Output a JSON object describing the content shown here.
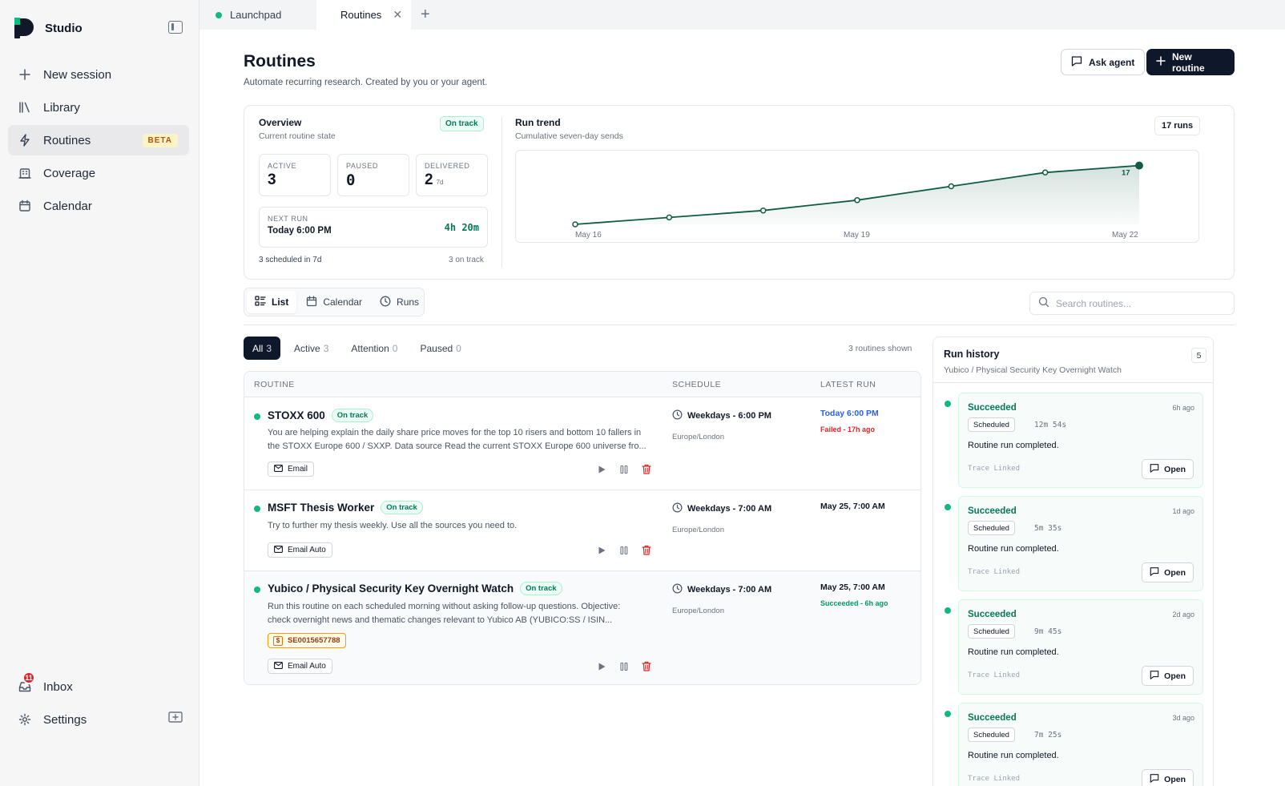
{
  "sidebar": {
    "brand": "Studio",
    "items": [
      {
        "label": "New session",
        "icon": "plus-icon"
      },
      {
        "label": "Library",
        "icon": "library-icon"
      },
      {
        "label": "Routines",
        "icon": "lightning-icon",
        "badge": "BETA",
        "active": true
      },
      {
        "label": "Coverage",
        "icon": "building-icon"
      },
      {
        "label": "Calendar",
        "icon": "calendar-icon"
      }
    ],
    "bottom": [
      {
        "label": "Inbox",
        "icon": "inbox-icon",
        "badge": "11"
      },
      {
        "label": "Settings",
        "icon": "gear-icon"
      }
    ]
  },
  "tabs": [
    {
      "label": "Launchpad",
      "dot_color": "#10b981"
    },
    {
      "label": "Routines",
      "dot_color": "#2563eb",
      "active": true
    }
  ],
  "header": {
    "title": "Routines",
    "subtitle": "Automate recurring research. Created by you or your agent.",
    "ask_agent": "Ask agent",
    "new_routine": "New routine"
  },
  "overview": {
    "title": "Overview",
    "subtitle": "Current routine state",
    "status": "On track",
    "stats": [
      {
        "label": "ACTIVE",
        "value": "3",
        "unit": ""
      },
      {
        "label": "PAUSED",
        "value": "0",
        "unit": ""
      },
      {
        "label": "DELIVERED",
        "value": "2",
        "unit": "7d"
      }
    ],
    "next_run_label": "NEXT RUN",
    "next_run_time": "Today 6:00 PM",
    "next_run_countdown": "4h 20m",
    "footer_left": "3 scheduled in 7d",
    "footer_right": "3 on track"
  },
  "trend": {
    "title": "Run trend",
    "subtitle": "Cumulative seven-day sends",
    "runs_badge": "17 runs"
  },
  "chart_data": {
    "type": "area",
    "x": [
      "May 16",
      "May 17",
      "May 18",
      "May 19",
      "May 20",
      "May 21",
      "May 22"
    ],
    "tick_labels": [
      "May 16",
      "May 19",
      "May 22"
    ],
    "values": [
      0,
      2,
      4,
      7,
      11,
      15,
      17
    ],
    "end_label": "17",
    "ylim": [
      0,
      19
    ],
    "color": "#0f5b45"
  },
  "views": [
    "List",
    "Calendar",
    "Runs"
  ],
  "search": {
    "placeholder": "Search routines..."
  },
  "filters": [
    {
      "label": "All",
      "count": "3",
      "active": true
    },
    {
      "label": "Active",
      "count": "3"
    },
    {
      "label": "Attention",
      "count": "0"
    },
    {
      "label": "Paused",
      "count": "0"
    }
  ],
  "shown_text": "3 routines shown",
  "table": {
    "columns": [
      "ROUTINE",
      "SCHEDULE",
      "LATEST RUN"
    ],
    "rows": [
      {
        "name": "STOXX 600",
        "status": "On track",
        "desc_line1": "You are helping explain the daily share price moves for the top 10 risers and bottom 10 fallers in",
        "desc_line2": "the STOXX Europe 600 / SXXP. Data source Read the current STOXX Europe 600 universe fro...",
        "delivery": "Email",
        "schedule": "Weekdays - 6:00 PM",
        "tz": "Europe/London",
        "latest": "Today 6:00 PM",
        "latest_sub": "Failed - 17h ago"
      },
      {
        "name": "MSFT Thesis Worker",
        "status": "On track",
        "desc_line1": "Try to further my thesis weekly. Use all the sources you need to.",
        "delivery": "Email Auto",
        "schedule": "Weekdays - 7:00 AM",
        "tz": "Europe/London",
        "latest": "May 25, 7:00 AM"
      },
      {
        "name": "Yubico / Physical Security Key Overnight Watch",
        "status": "On track",
        "desc_line1": "Run this routine on each scheduled morning without asking follow-up questions. Objective:",
        "desc_line2": "check overnight news and thematic changes relevant to Yubico AB (YUBICO:SS / ISIN...",
        "ticker": "SE0015657788",
        "delivery": "Email Auto",
        "schedule": "Weekdays - 7:00 AM",
        "tz": "Europe/London",
        "latest": "May 25, 7:00 AM",
        "latest_sub": "Succeeded - 6h ago"
      }
    ]
  },
  "history": {
    "title": "Run history",
    "subtitle": "Yubico / Physical Security Key Overnight Watch",
    "count": "5",
    "items": [
      {
        "status": "Succeeded",
        "ago": "6h ago",
        "type": "Scheduled",
        "duration": "12m 54s",
        "message": "Routine run completed.",
        "trace": "Trace Linked",
        "open": "Open"
      },
      {
        "status": "Succeeded",
        "ago": "1d ago",
        "type": "Scheduled",
        "duration": "5m 35s",
        "message": "Routine run completed.",
        "trace": "Trace Linked",
        "open": "Open"
      },
      {
        "status": "Succeeded",
        "ago": "2d ago",
        "type": "Scheduled",
        "duration": "9m 45s",
        "message": "Routine run completed.",
        "trace": "Trace Linked",
        "open": "Open"
      },
      {
        "status": "Succeeded",
        "ago": "3d ago",
        "type": "Scheduled",
        "duration": "7m 25s",
        "message": "Routine run completed.",
        "trace": "Trace Linked",
        "open": "Open"
      }
    ]
  }
}
